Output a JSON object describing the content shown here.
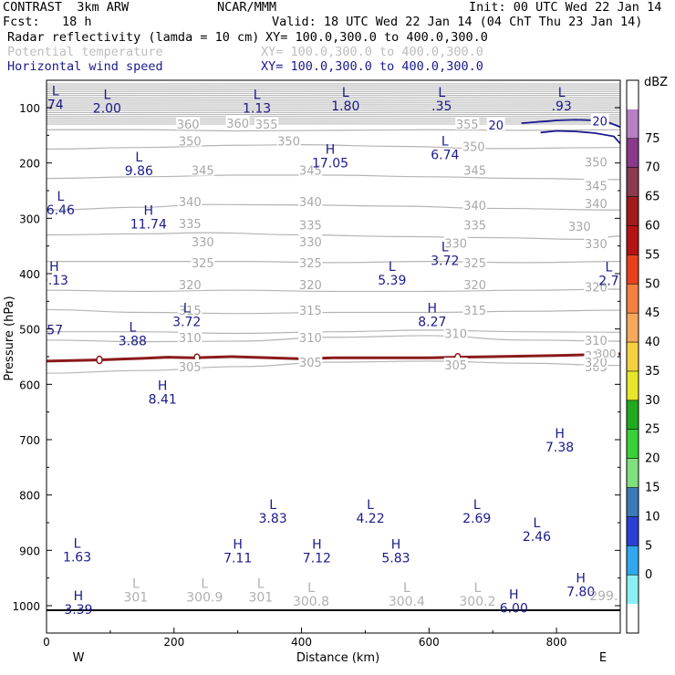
{
  "header": {
    "left1": "CONTRAST  3km ARW",
    "center1": "NCAR/MMM",
    "right1": "Init: 00 UTC Wed 22 Jan 14",
    "left2": "Fcst:   18 h",
    "right2": "Valid: 18 UTC Wed 22 Jan 14 (04 ChT Thu 23 Jan 14)",
    "field1_name": "Radar reflectivity (lamda = 10 cm)",
    "field1_xy": "XY= 100.0,300.0 to 400.0,300.0",
    "field2_name": "Potential temperature",
    "field2_xy": "XY= 100.0,300.0 to 400.0,300.0",
    "field3_name": "Horizontal wind speed",
    "field3_xy": "XY= 100.0,300.0 to 400.0,300.0"
  },
  "colors": {
    "theta": "#b4b4b4",
    "wind": "#1a1a8c",
    "front": "#8b1a1a",
    "axis": "#000000"
  },
  "chart_data": {
    "type": "cross-section",
    "xlabel": "Distance (km)",
    "ylabel": "Pressure (hPa)",
    "xlim": [
      0,
      900
    ],
    "ylim": [
      1050,
      60
    ],
    "x_ticks": [
      0,
      200,
      400,
      600,
      800
    ],
    "y_ticks": [
      100,
      200,
      300,
      400,
      500,
      600,
      700,
      800,
      900,
      1000
    ],
    "west_label": "W",
    "east_label": "E",
    "theta_contours": [
      {
        "level": "355",
        "points": [
          [
            0,
            140
          ],
          [
            150,
            140
          ],
          [
            300,
            142
          ],
          [
            450,
            141
          ],
          [
            600,
            140
          ],
          [
            750,
            141
          ],
          [
            900,
            140
          ]
        ]
      },
      {
        "level": "350",
        "points": [
          [
            0,
            175
          ],
          [
            150,
            172
          ],
          [
            300,
            168
          ],
          [
            400,
            167
          ],
          [
            550,
            170
          ],
          [
            700,
            174
          ],
          [
            900,
            172
          ]
        ]
      },
      {
        "level": "345",
        "points": [
          [
            0,
            228
          ],
          [
            150,
            225
          ],
          [
            300,
            222
          ],
          [
            450,
            222
          ],
          [
            600,
            225
          ],
          [
            750,
            228
          ],
          [
            900,
            230
          ]
        ]
      },
      {
        "level": "340",
        "points": [
          [
            0,
            285
          ],
          [
            150,
            280
          ],
          [
            250,
            275
          ],
          [
            400,
            276
          ],
          [
            550,
            278
          ],
          [
            700,
            282
          ],
          [
            900,
            285
          ]
        ]
      },
      {
        "level": "335",
        "points": [
          [
            0,
            330
          ],
          [
            150,
            328
          ],
          [
            250,
            326
          ],
          [
            400,
            330
          ],
          [
            550,
            333
          ],
          [
            700,
            335
          ],
          [
            850,
            338
          ],
          [
            900,
            332
          ]
        ]
      },
      {
        "level": "330",
        "points": [
          [
            0,
            378
          ],
          [
            150,
            378
          ],
          [
            300,
            378
          ],
          [
            450,
            380
          ],
          [
            600,
            378
          ],
          [
            750,
            380
          ],
          [
            900,
            378
          ]
        ]
      },
      {
        "level": "325",
        "points": [
          [
            0,
            430
          ],
          [
            150,
            432
          ],
          [
            300,
            430
          ],
          [
            450,
            432
          ],
          [
            600,
            432
          ],
          [
            750,
            430
          ],
          [
            900,
            428
          ]
        ]
      },
      {
        "level": "320",
        "points": [
          [
            0,
            465
          ],
          [
            150,
            470
          ],
          [
            300,
            472
          ],
          [
            450,
            470
          ],
          [
            600,
            470
          ],
          [
            750,
            468
          ],
          [
            900,
            466
          ]
        ]
      },
      {
        "level": "315",
        "points": [
          [
            0,
            505
          ],
          [
            150,
            505
          ],
          [
            300,
            508
          ],
          [
            450,
            505
          ],
          [
            600,
            502
          ],
          [
            750,
            505
          ],
          [
            900,
            506
          ]
        ]
      },
      {
        "level": "310",
        "points": [
          [
            0,
            520
          ],
          [
            150,
            523
          ],
          [
            300,
            522
          ],
          [
            450,
            515
          ],
          [
            600,
            512
          ],
          [
            750,
            520
          ],
          [
            900,
            522
          ]
        ]
      },
      {
        "level": "305",
        "points": [
          [
            0,
            580
          ],
          [
            150,
            575
          ],
          [
            300,
            568
          ],
          [
            450,
            560
          ],
          [
            600,
            558
          ],
          [
            750,
            562
          ],
          [
            900,
            566
          ]
        ]
      }
    ],
    "theta_labels": [
      {
        "x": 222,
        "p": 130,
        "text": "360"
      },
      {
        "x": 345,
        "p": 130,
        "text": "355"
      },
      {
        "x": 300,
        "p": 128,
        "text": "360"
      },
      {
        "x": 660,
        "p": 130,
        "text": "355"
      },
      {
        "x": 225,
        "p": 160,
        "text": "350"
      },
      {
        "x": 380,
        "p": 160,
        "text": "350"
      },
      {
        "x": 670,
        "p": 170,
        "text": "350"
      },
      {
        "x": 862,
        "p": 198,
        "text": "350"
      },
      {
        "x": 245,
        "p": 213,
        "text": "345"
      },
      {
        "x": 414,
        "p": 213,
        "text": "345"
      },
      {
        "x": 672,
        "p": 213,
        "text": "345"
      },
      {
        "x": 862,
        "p": 241,
        "text": "345"
      },
      {
        "x": 225,
        "p": 270,
        "text": "340"
      },
      {
        "x": 414,
        "p": 270,
        "text": "340"
      },
      {
        "x": 672,
        "p": 276,
        "text": "340"
      },
      {
        "x": 862,
        "p": 273,
        "text": "340"
      },
      {
        "x": 225,
        "p": 309,
        "text": "335"
      },
      {
        "x": 414,
        "p": 312,
        "text": "335"
      },
      {
        "x": 672,
        "p": 312,
        "text": "335"
      },
      {
        "x": 836,
        "p": 314,
        "text": "330"
      },
      {
        "x": 245,
        "p": 342,
        "text": "330"
      },
      {
        "x": 414,
        "p": 342,
        "text": "330"
      },
      {
        "x": 642,
        "p": 345,
        "text": "330"
      },
      {
        "x": 862,
        "p": 346,
        "text": "330"
      },
      {
        "x": 245,
        "p": 380,
        "text": "325"
      },
      {
        "x": 414,
        "p": 380,
        "text": "325"
      },
      {
        "x": 672,
        "p": 380,
        "text": "325"
      },
      {
        "x": 225,
        "p": 420,
        "text": "320"
      },
      {
        "x": 414,
        "p": 420,
        "text": "320"
      },
      {
        "x": 672,
        "p": 420,
        "text": "320"
      },
      {
        "x": 862,
        "p": 424,
        "text": "320"
      },
      {
        "x": 225,
        "p": 466,
        "text": "315"
      },
      {
        "x": 414,
        "p": 466,
        "text": "315"
      },
      {
        "x": 672,
        "p": 466,
        "text": "315"
      },
      {
        "x": 225,
        "p": 515,
        "text": "310"
      },
      {
        "x": 414,
        "p": 515,
        "text": "310"
      },
      {
        "x": 642,
        "p": 508,
        "text": "310"
      },
      {
        "x": 862,
        "p": 520,
        "text": "310"
      },
      {
        "x": 225,
        "p": 568,
        "text": "305"
      },
      {
        "x": 414,
        "p": 560,
        "text": "305"
      },
      {
        "x": 642,
        "p": 565,
        "text": "305"
      },
      {
        "x": 862,
        "p": 568,
        "text": "305"
      },
      {
        "x": 862,
        "p": 548,
        "text": "310"
      },
      {
        "x": 862,
        "p": 560,
        "text": "320"
      }
    ],
    "minmax_labels": [
      {
        "x": 14,
        "p": 78,
        "mark": "L",
        "value": "74",
        "color": "wind"
      },
      {
        "x": 95,
        "p": 84,
        "mark": "L",
        "value": "2.00",
        "color": "wind"
      },
      {
        "x": 330,
        "p": 84,
        "mark": "L",
        "value": "1.13",
        "color": "wind"
      },
      {
        "x": 469,
        "p": 80,
        "mark": "L",
        "value": "1.80",
        "color": "wind"
      },
      {
        "x": 620,
        "p": 80,
        "mark": "L",
        "value": ".35",
        "color": "wind"
      },
      {
        "x": 808,
        "p": 80,
        "mark": "L",
        "value": ".93",
        "color": "wind"
      },
      {
        "x": 625,
        "p": 168,
        "mark": "L",
        "value": "6.74",
        "color": "wind"
      },
      {
        "x": 145,
        "p": 197,
        "mark": "L",
        "value": "9.86",
        "color": "wind"
      },
      {
        "x": 445,
        "p": 183,
        "mark": "H",
        "value": "17.05",
        "color": "wind"
      },
      {
        "x": 22,
        "p": 268,
        "mark": "L",
        "value": "6.46",
        "color": "wind"
      },
      {
        "x": 160,
        "p": 294,
        "mark": "H",
        "value": "11.74",
        "color": "wind"
      },
      {
        "x": 625,
        "p": 360,
        "mark": "L",
        "value": "3.72",
        "color": "wind"
      },
      {
        "x": 12,
        "p": 395,
        "mark": "H",
        "value": "0.13",
        "color": "wind"
      },
      {
        "x": 542,
        "p": 395,
        "mark": "L",
        "value": "5.39",
        "color": "wind"
      },
      {
        "x": 882,
        "p": 396,
        "mark": "L",
        "value": "2.7",
        "color": "wind"
      },
      {
        "x": 10,
        "p": 485,
        "mark": "",
        "value": ".57",
        "color": "wind"
      },
      {
        "x": 220,
        "p": 470,
        "mark": "L",
        "value": "3.72",
        "color": "wind"
      },
      {
        "x": 605,
        "p": 470,
        "mark": "H",
        "value": "8.27",
        "color": "wind"
      },
      {
        "x": 135,
        "p": 505,
        "mark": "L",
        "value": "3.88",
        "color": "wind"
      },
      {
        "x": 182,
        "p": 610,
        "mark": "H",
        "value": "8.41",
        "color": "wind"
      },
      {
        "x": 805,
        "p": 697,
        "mark": "H",
        "value": "7.38",
        "color": "wind"
      },
      {
        "x": 355,
        "p": 825,
        "mark": "L",
        "value": "3.83",
        "color": "wind"
      },
      {
        "x": 508,
        "p": 825,
        "mark": "L",
        "value": "4.22",
        "color": "wind"
      },
      {
        "x": 675,
        "p": 825,
        "mark": "L",
        "value": "2.69",
        "color": "wind"
      },
      {
        "x": 769,
        "p": 858,
        "mark": "L",
        "value": "2.46",
        "color": "wind"
      },
      {
        "x": 48,
        "p": 895,
        "mark": "L",
        "value": "1.63",
        "color": "wind"
      },
      {
        "x": 300,
        "p": 897,
        "mark": "H",
        "value": "7.11",
        "color": "wind"
      },
      {
        "x": 424,
        "p": 897,
        "mark": "H",
        "value": "7.12",
        "color": "wind"
      },
      {
        "x": 548,
        "p": 897,
        "mark": "H",
        "value": "5.83",
        "color": "wind"
      },
      {
        "x": 838,
        "p": 958,
        "mark": "H",
        "value": "7.80",
        "color": "wind"
      },
      {
        "x": 140,
        "p": 968,
        "mark": "L",
        "value": "301",
        "color": "theta"
      },
      {
        "x": 248,
        "p": 968,
        "mark": "L",
        "value": "300.9",
        "color": "theta"
      },
      {
        "x": 336,
        "p": 968,
        "mark": "L",
        "value": "301",
        "color": "theta"
      },
      {
        "x": 415,
        "p": 975,
        "mark": "L",
        "value": "300.8",
        "color": "theta"
      },
      {
        "x": 565,
        "p": 975,
        "mark": "L",
        "value": "300.4",
        "color": "theta"
      },
      {
        "x": 676,
        "p": 975,
        "mark": "L",
        "value": "300.2",
        "color": "theta"
      },
      {
        "x": 874,
        "p": 965,
        "mark": "",
        "value": "299.",
        "color": "theta"
      },
      {
        "x": 50,
        "p": 990,
        "mark": "H",
        "value": "3.39",
        "color": "wind"
      },
      {
        "x": 733,
        "p": 988,
        "mark": "H",
        "value": "6.00",
        "color": "wind"
      }
    ],
    "wind_contours": [
      {
        "level": "20",
        "label_x": [
          705,
          868
        ],
        "points": [
          [
            745,
            128
          ],
          [
            780,
            125
          ],
          [
            800,
            123
          ],
          [
            830,
            122
          ],
          [
            860,
            123
          ],
          [
            880,
            126
          ],
          [
            900,
            135
          ]
        ]
      },
      {
        "level": "20",
        "label_x": [],
        "points": [
          [
            775,
            145
          ],
          [
            800,
            142
          ],
          [
            830,
            143
          ],
          [
            860,
            146
          ],
          [
            890,
            152
          ],
          [
            900,
            165
          ]
        ]
      }
    ],
    "front_line": {
      "points": [
        [
          0,
          558
        ],
        [
          80,
          556
        ],
        [
          150,
          553
        ],
        [
          190,
          551
        ],
        [
          230,
          552
        ],
        [
          290,
          550
        ],
        [
          350,
          552
        ],
        [
          400,
          554
        ],
        [
          450,
          552
        ],
        [
          500,
          552
        ],
        [
          600,
          552
        ],
        [
          700,
          550
        ],
        [
          800,
          548
        ],
        [
          900,
          545
        ]
      ],
      "markers": [
        83,
        236,
        645
      ],
      "end_label": "300."
    },
    "colorbar": {
      "unit": "dBZ",
      "levels": [
        "75",
        "70",
        "65",
        "60",
        "55",
        "50",
        "45",
        "40",
        "35",
        "30",
        "25",
        "20",
        "15",
        "10",
        "5",
        "0"
      ],
      "colors": [
        "#ffffff",
        "#b77fc4",
        "#8a3a8c",
        "#8b3a4f",
        "#a01c1c",
        "#b51313",
        "#e8401c",
        "#f58040",
        "#f5a85a",
        "#f5d040",
        "#e6e62a",
        "#1faa1f",
        "#3ad03a",
        "#7ee07e",
        "#3b7ab5",
        "#2c3fd4",
        "#2fa8f0",
        "#8af0f5",
        "#ffffff"
      ]
    }
  }
}
